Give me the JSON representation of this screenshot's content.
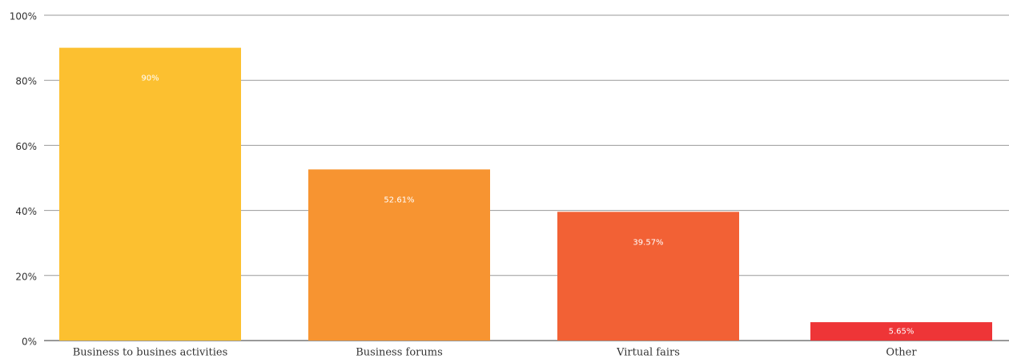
{
  "chart_data": {
    "type": "bar",
    "categories": [
      "Business to busines activities",
      "Business forums",
      "Virtual fairs",
      "Other"
    ],
    "values": [
      90,
      52.61,
      39.57,
      5.65
    ],
    "value_labels": [
      "90%",
      "52.61%",
      "39.57%",
      "5.65%"
    ],
    "colors": [
      "#fcc030",
      "#f79431",
      "#f26135",
      "#ee3537"
    ],
    "ylim": [
      0,
      100
    ],
    "yticks": [
      {
        "value": 0,
        "label": "0%"
      },
      {
        "value": 20,
        "label": "20%"
      },
      {
        "value": 40,
        "label": "40%"
      },
      {
        "value": 60,
        "label": "60%"
      },
      {
        "value": 80,
        "label": "80%"
      },
      {
        "value": 100,
        "label": "100%"
      }
    ],
    "grid": true
  }
}
